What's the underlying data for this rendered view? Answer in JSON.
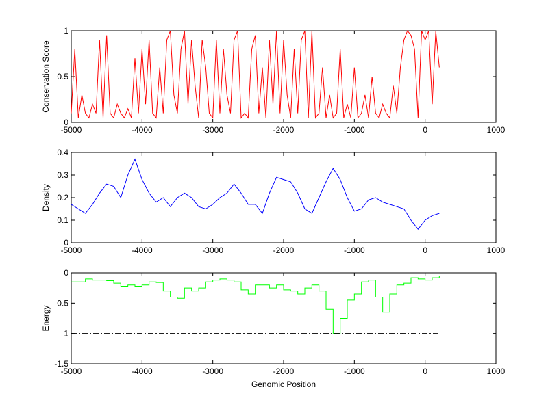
{
  "chart_data": [
    {
      "type": "line",
      "ylabel": "Conservation Score",
      "xlabel": "",
      "xlim": [
        -5000,
        1000
      ],
      "ylim": [
        0,
        1
      ],
      "xticks": [
        "-5000",
        "-4000",
        "-3000",
        "-2000",
        "-1000",
        "0",
        "1000"
      ],
      "yticks": [
        "0",
        "0.5",
        "1"
      ],
      "ytick_values": [
        0,
        0.5,
        1
      ],
      "color": "#ff0000",
      "x_start": -5000,
      "x_step": 50,
      "values": [
        0.1,
        0.8,
        0.05,
        0.3,
        0.1,
        0.05,
        0.2,
        0.1,
        0.9,
        0.05,
        0.95,
        0.1,
        0.05,
        0.2,
        0.1,
        0.05,
        0.15,
        0.05,
        0.7,
        0.1,
        0.8,
        0.2,
        0.9,
        0.1,
        0.05,
        0.6,
        0.1,
        0.9,
        1,
        0.3,
        0.1,
        0.8,
        1,
        0.2,
        0.9,
        0.4,
        0.05,
        0.9,
        0.6,
        0.1,
        0.05,
        0.9,
        0.1,
        0.8,
        0.3,
        0.1,
        0.9,
        1,
        0.05,
        0.1,
        0.05,
        0.8,
        0.95,
        0.1,
        0.6,
        0.05,
        0.9,
        0.2,
        1,
        0.1,
        0.9,
        0.3,
        0.05,
        0.8,
        0.1,
        0.9,
        1,
        0.05,
        1,
        0.05,
        0.1,
        0.6,
        0.05,
        0.3,
        0.05,
        0.1,
        0.8,
        0.05,
        0.2,
        0.05,
        0.6,
        0.05,
        0.1,
        0.3,
        0.05,
        0.5,
        0.1,
        0.05,
        0.2,
        0.1,
        0.05,
        0.4,
        0.1,
        0.6,
        0.9,
        1,
        0.95,
        0.8,
        0.05,
        1,
        0.9,
        1,
        0.2,
        1,
        0.6
      ],
      "stairs": false
    },
    {
      "type": "line",
      "ylabel": "Density",
      "xlabel": "",
      "xlim": [
        -5000,
        1000
      ],
      "ylim": [
        0,
        0.4
      ],
      "xticks": [
        "-5000",
        "-4000",
        "-3000",
        "-2000",
        "-1000",
        "0",
        "1000"
      ],
      "yticks": [
        "0",
        "0.1",
        "0.2",
        "0.3",
        "0.4"
      ],
      "ytick_values": [
        0,
        0.1,
        0.2,
        0.3,
        0.4
      ],
      "color": "#0000ff",
      "x_start": -5000,
      "x_step": 100,
      "values": [
        0.17,
        0.15,
        0.13,
        0.17,
        0.22,
        0.26,
        0.25,
        0.2,
        0.3,
        0.37,
        0.28,
        0.22,
        0.18,
        0.2,
        0.16,
        0.2,
        0.22,
        0.2,
        0.16,
        0.15,
        0.17,
        0.2,
        0.22,
        0.26,
        0.22,
        0.17,
        0.17,
        0.13,
        0.22,
        0.29,
        0.28,
        0.27,
        0.22,
        0.15,
        0.13,
        0.2,
        0.27,
        0.33,
        0.28,
        0.2,
        0.14,
        0.15,
        0.19,
        0.2,
        0.18,
        0.17,
        0.16,
        0.15,
        0.1,
        0.06,
        0.1,
        0.12,
        0.13
      ],
      "stairs": false
    },
    {
      "type": "line",
      "ylabel": "Energy",
      "xlabel": "Genomic Position",
      "xlim": [
        -5000,
        1000
      ],
      "ylim": [
        -1.5,
        0
      ],
      "xticks": [
        "-5000",
        "-4000",
        "-3000",
        "-2000",
        "-1000",
        "0",
        "1000"
      ],
      "yticks": [
        "-1.5",
        "-1",
        "-0.5",
        "0"
      ],
      "ytick_values": [
        -1.5,
        -1,
        -0.5,
        0
      ],
      "color": "#00ff00",
      "x_start": -5000,
      "x_step": 100,
      "values": [
        -0.15,
        -0.15,
        -0.1,
        -0.12,
        -0.12,
        -0.13,
        -0.17,
        -0.22,
        -0.2,
        -0.22,
        -0.2,
        -0.15,
        -0.16,
        -0.3,
        -0.4,
        -0.42,
        -0.25,
        -0.3,
        -0.25,
        -0.15,
        -0.12,
        -0.1,
        -0.12,
        -0.15,
        -0.28,
        -0.35,
        -0.2,
        -0.2,
        -0.25,
        -0.2,
        -0.28,
        -0.3,
        -0.35,
        -0.25,
        -0.2,
        -0.3,
        -0.6,
        -1.0,
        -0.75,
        -0.45,
        -0.35,
        -0.15,
        -0.12,
        -0.4,
        -0.65,
        -0.35,
        -0.2,
        -0.17,
        -0.08,
        -0.1,
        -0.12,
        -0.08,
        -0.05
      ],
      "stairs": true,
      "threshold": {
        "y": -1,
        "x_range": [
          -5000,
          200
        ],
        "style": "dash-dot",
        "color": "#000000"
      }
    }
  ]
}
